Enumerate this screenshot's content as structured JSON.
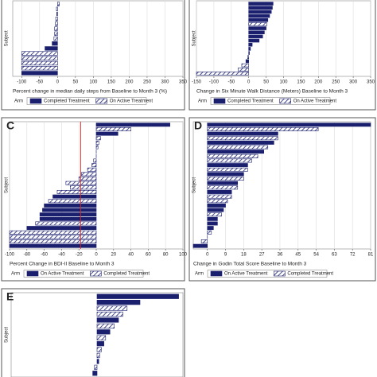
{
  "chart_data": [
    {
      "type": "waterfall",
      "xlabel": "Percent change in median daily steps from Baseline to Month 3 (%)",
      "ylabel": "Subject",
      "legend_title": "Arm",
      "xlim": [
        -125,
        350
      ],
      "xticks": [
        -100,
        -50,
        0,
        50,
        100,
        150,
        200,
        250,
        300,
        350
      ],
      "grid": true,
      "series": [
        {
          "name": "Completed Treatment",
          "color": "#1a1f6e",
          "fill": "solid",
          "values": [
            null,
            null,
            -2,
            null,
            null,
            null,
            null,
            null,
            -15,
            -35,
            null,
            null,
            null,
            null,
            -100
          ]
        },
        {
          "name": "On Active Treatment",
          "color": "#1a1f6e",
          "fill": "hatch",
          "values": [
            5,
            -3,
            null,
            -5,
            -6,
            -8,
            -8,
            -10,
            null,
            null,
            -100,
            -100,
            -100,
            -100,
            null
          ]
        }
      ]
    },
    {
      "type": "waterfall",
      "xlabel": "Change in Six Minute Walk Distance (Meters) Baseline to Month 3",
      "ylabel": "Subject",
      "legend_title": "Arm",
      "xlim": [
        -150,
        350
      ],
      "xticks": [
        -150,
        -100,
        -50,
        0,
        50,
        100,
        150,
        200,
        250,
        300,
        350
      ],
      "grid": true,
      "series": [
        {
          "name": "Completed Treatment",
          "color": "#1a1f6e",
          "fill": "solid",
          "values": [
            70,
            68,
            65,
            60,
            55,
            null,
            50,
            45,
            40,
            30,
            10,
            5,
            2,
            null,
            -8,
            null,
            null,
            null
          ]
        },
        {
          "name": "On Active Treatment",
          "color": "#1a1f6e",
          "fill": "hatch",
          "values": [
            null,
            null,
            null,
            null,
            null,
            52,
            null,
            null,
            null,
            null,
            null,
            null,
            null,
            -3,
            null,
            -20,
            -30,
            -150
          ]
        }
      ]
    },
    {
      "type": "waterfall",
      "label": "C",
      "xlabel": "Percent Change in BDI-II Baseline to Month 3",
      "ylabel": "Subject",
      "legend_title": "Arm",
      "xlim": [
        -100,
        100
      ],
      "xticks": [
        -100,
        -80,
        -60,
        -40,
        -20,
        0,
        20,
        40,
        60,
        80,
        100
      ],
      "grid": true,
      "reference_x": -18,
      "reference_color": "#e02020",
      "series": [
        {
          "name": "On Active Treatment",
          "color": "#1a1f6e",
          "fill": "solid",
          "values": [
            85,
            null,
            25,
            null,
            null,
            null,
            0,
            0,
            null,
            null,
            null,
            null,
            null,
            null,
            null,
            null,
            -50,
            null,
            -60,
            -62,
            -65,
            -65,
            null,
            -80,
            null,
            null,
            null,
            -100
          ]
        },
        {
          "name": "Completed Treatment",
          "color": "#1a1f6e",
          "fill": "hatch",
          "values": [
            null,
            40,
            null,
            5,
            3,
            2,
            null,
            null,
            -3,
            -5,
            -10,
            -17,
            -20,
            -35,
            -30,
            -45,
            null,
            -55,
            null,
            null,
            null,
            null,
            -70,
            null,
            -100,
            -100,
            -100,
            null
          ]
        }
      ]
    },
    {
      "type": "waterfall",
      "label": "D",
      "xlabel": "Change in Godin Total Score Baseline to Month 3",
      "ylabel": "Subject",
      "legend_title": "Arm",
      "xlim": [
        -7,
        81
      ],
      "xticks": [
        0,
        9,
        18,
        27,
        36,
        45,
        54,
        63,
        72,
        81
      ],
      "grid": true,
      "series": [
        {
          "name": "On Active Treatment",
          "color": "#1a1f6e",
          "fill": "solid",
          "values": [
            81,
            null,
            35,
            null,
            33,
            null,
            28,
            null,
            null,
            20,
            null,
            18,
            null,
            15,
            null,
            12,
            null,
            null,
            9,
            8,
            null,
            5,
            5,
            3,
            null,
            0,
            null,
            -7
          ]
        },
        {
          "name": "Completed Treatment",
          "color": "#1a1f6e",
          "fill": "hatch",
          "values": [
            null,
            55,
            null,
            35,
            null,
            30,
            null,
            25,
            22,
            null,
            20,
            null,
            18,
            null,
            15,
            null,
            12,
            10,
            null,
            null,
            7,
            null,
            null,
            null,
            2,
            null,
            -3,
            null
          ]
        }
      ]
    },
    {
      "type": "waterfall",
      "label": "E",
      "ylabel": "Subject",
      "xlim": [
        -100,
        100
      ],
      "grid": false,
      "series": [
        {
          "color": "#1a1f6e",
          "fill": "solid",
          "values": [
            95,
            50,
            null,
            null,
            25,
            null,
            15,
            null,
            8,
            null,
            null,
            2,
            null,
            -5
          ]
        },
        {
          "color": "#1a1f6e",
          "fill": "hatch",
          "values": [
            null,
            null,
            35,
            30,
            null,
            20,
            null,
            10,
            null,
            5,
            3,
            null,
            -3,
            null
          ]
        }
      ]
    }
  ]
}
